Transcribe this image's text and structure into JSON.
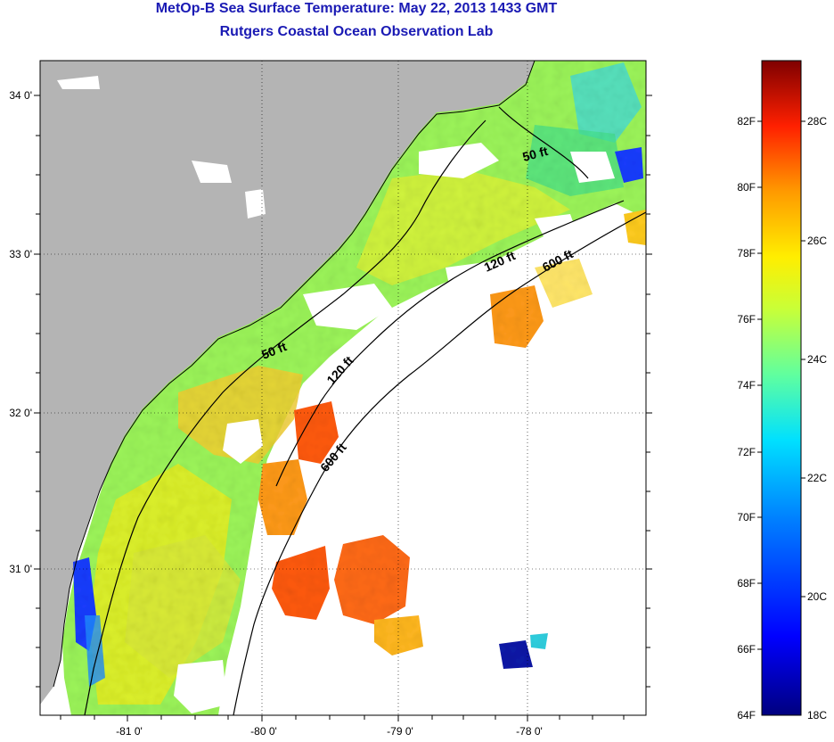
{
  "header": {
    "title_line1": "MetOp-B Sea Surface Temperature:  May 22, 2013 1433 GMT",
    "title_line2": "Rutgers Coastal Ocean Observation Lab"
  },
  "axes": {
    "lon_ticks": [
      "-81 0'",
      "-80 0'",
      "-79 0'",
      "-78 0'"
    ],
    "lat_ticks": [
      "34 0'",
      "33 0'",
      "32 0'",
      "31 0'"
    ]
  },
  "contours": [
    {
      "label": "50 ft"
    },
    {
      "label": "50 ft"
    },
    {
      "label": "120 ft"
    },
    {
      "label": "120 ft"
    },
    {
      "label": "600 ft"
    },
    {
      "label": "600 ft"
    }
  ],
  "colorbar": {
    "fahrenheit": [
      "82F",
      "80F",
      "78F",
      "76F",
      "74F",
      "72F",
      "70F",
      "68F",
      "66F",
      "64F"
    ],
    "celsius": [
      "28C",
      "26C",
      "24C",
      "22C",
      "20C",
      "18C"
    ]
  },
  "colors": {
    "title": "#1a1ab4",
    "land": "#b4b4b4",
    "nodata": "#ffffff"
  }
}
